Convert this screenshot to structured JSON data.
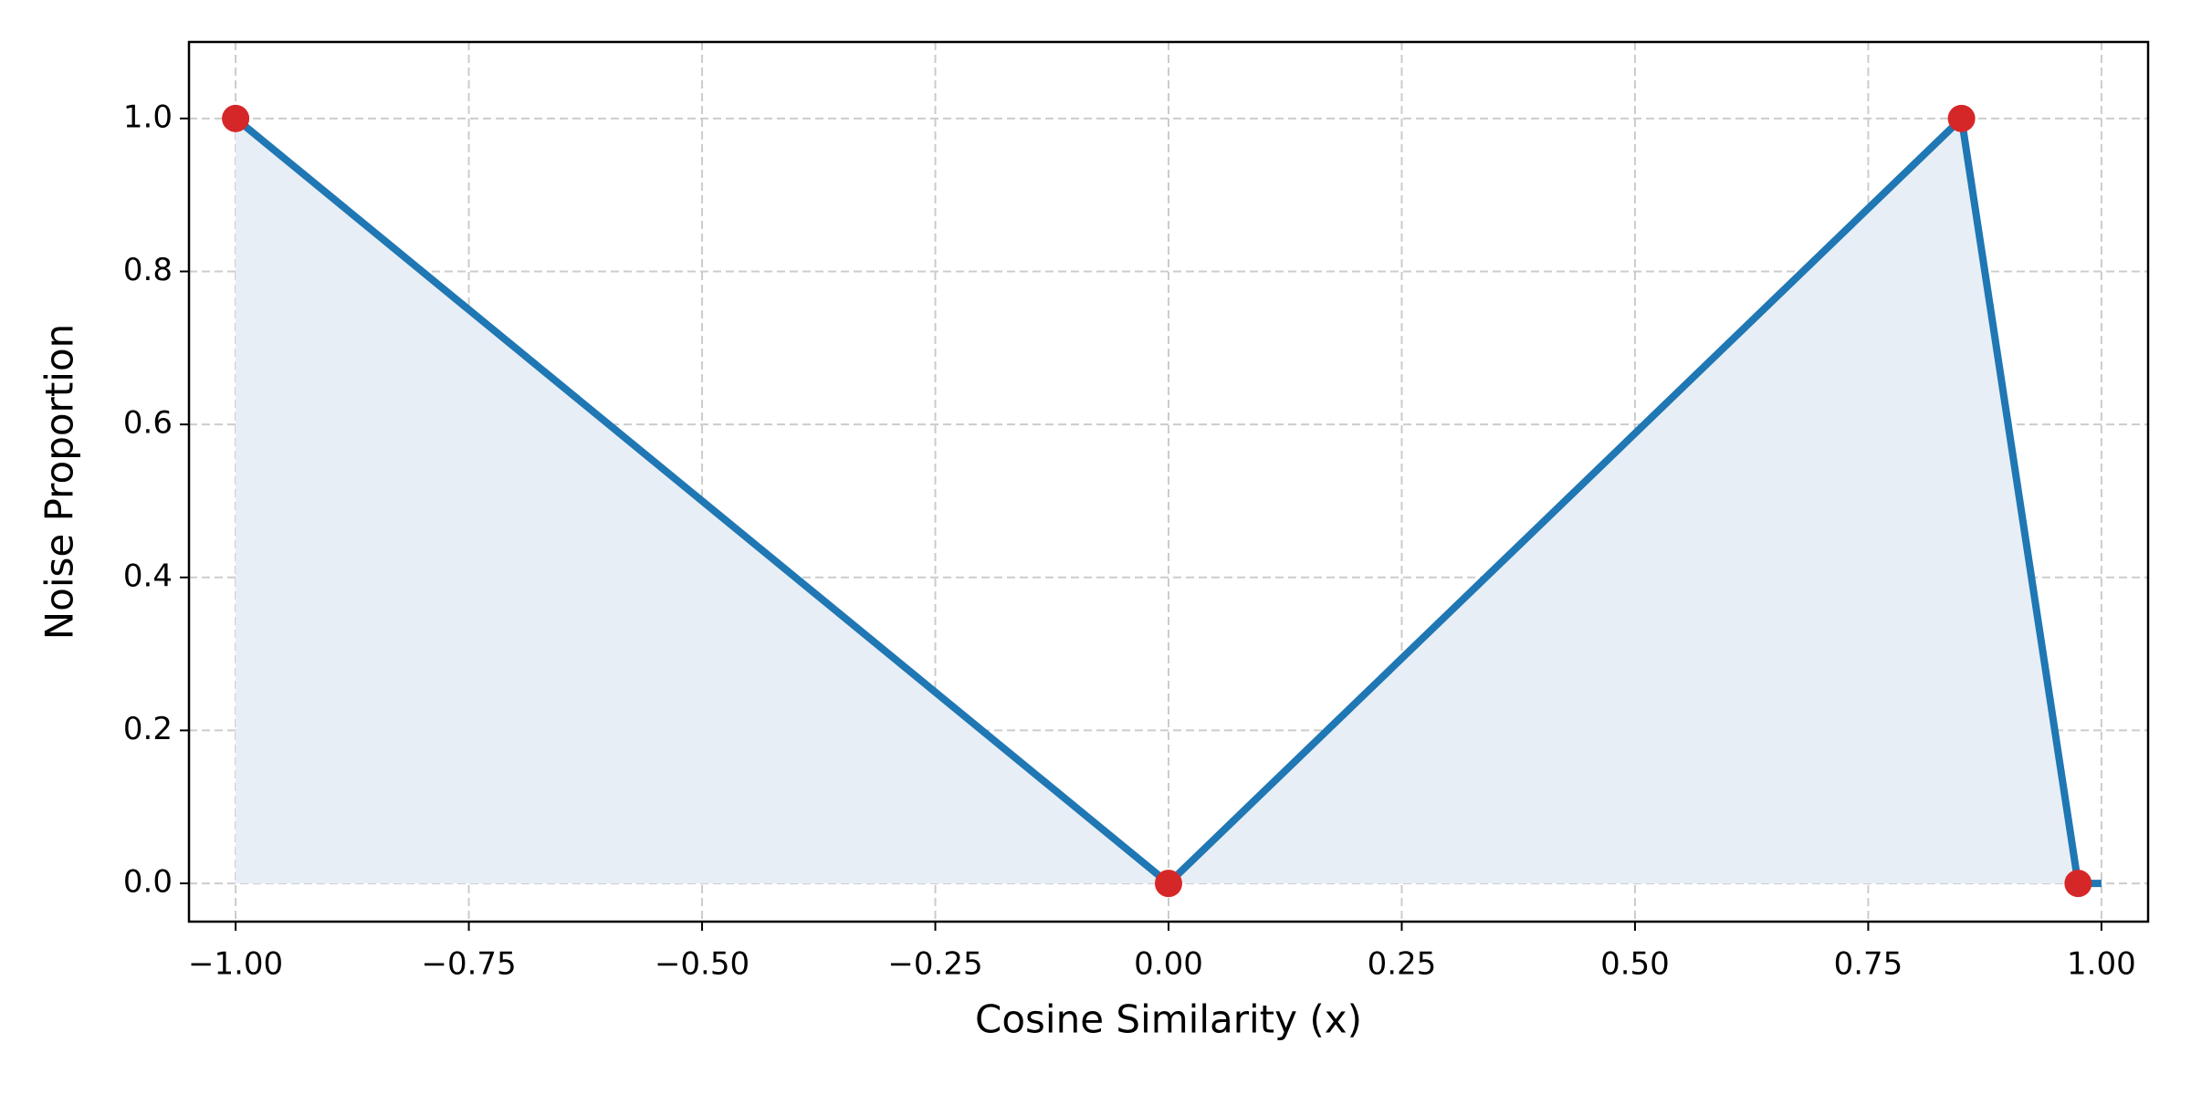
{
  "chart_data": {
    "type": "line",
    "xlabel": "Cosine Similarity (x)",
    "ylabel": "Noise Proportion",
    "x": [
      -1.0,
      0.0,
      0.85,
      0.975,
      1.0
    ],
    "values": [
      1.0,
      0.0,
      1.0,
      0.0,
      0.0
    ],
    "color": "#1f77b4",
    "fill_color": "#e8eef5",
    "markers": {
      "x": [
        -1.0,
        0.0,
        0.85,
        0.975
      ],
      "values": [
        1.0,
        0.0,
        1.0,
        0.0
      ],
      "color": "#d62728"
    },
    "xlim": [
      -1.05,
      1.05
    ],
    "ylim": [
      -0.05,
      1.1
    ],
    "xticks": [
      {
        "value": -1.0,
        "label": "−1.00"
      },
      {
        "value": -0.75,
        "label": "−0.75"
      },
      {
        "value": -0.5,
        "label": "−0.50"
      },
      {
        "value": -0.25,
        "label": "−0.25"
      },
      {
        "value": 0,
        "label": "0.00"
      },
      {
        "value": 0.25,
        "label": "0.25"
      },
      {
        "value": 0.5,
        "label": "0.50"
      },
      {
        "value": 0.75,
        "label": "0.75"
      },
      {
        "value": 1.0,
        "label": "1.00"
      }
    ],
    "yticks": [
      {
        "value": 0,
        "label": "0.0"
      },
      {
        "value": 0.2,
        "label": "0.2"
      },
      {
        "value": 0.4,
        "label": "0.4"
      },
      {
        "value": 0.6,
        "label": "0.6"
      },
      {
        "value": 0.8,
        "label": "0.8"
      },
      {
        "value": 1.0,
        "label": "1.0"
      }
    ],
    "grid": true
  }
}
